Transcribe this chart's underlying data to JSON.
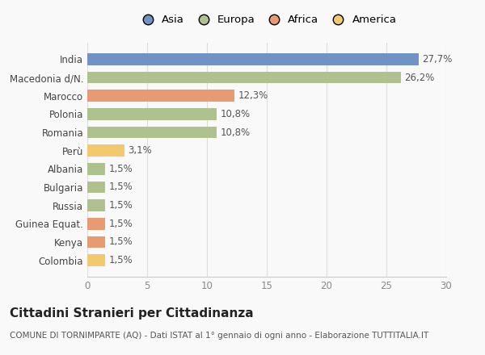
{
  "categories": [
    "Colombia",
    "Kenya",
    "Guinea Equat.",
    "Russia",
    "Bulgaria",
    "Albania",
    "Perù",
    "Romania",
    "Polonia",
    "Marocco",
    "Macedonia d/N.",
    "India"
  ],
  "values": [
    1.5,
    1.5,
    1.5,
    1.5,
    1.5,
    1.5,
    3.1,
    10.8,
    10.8,
    12.3,
    26.2,
    27.7
  ],
  "labels": [
    "1,5%",
    "1,5%",
    "1,5%",
    "1,5%",
    "1,5%",
    "1,5%",
    "3,1%",
    "10,8%",
    "10,8%",
    "12,3%",
    "26,2%",
    "27,7%"
  ],
  "colors": [
    "#f2c96e",
    "#e89b72",
    "#e89b72",
    "#afc28e",
    "#afc28e",
    "#afc28e",
    "#f2c96e",
    "#afc28e",
    "#afc28e",
    "#e89b72",
    "#afc28e",
    "#7192c4"
  ],
  "legend_labels": [
    "Asia",
    "Europa",
    "Africa",
    "America"
  ],
  "legend_colors": [
    "#7192c4",
    "#afc28e",
    "#e89b72",
    "#f2c96e"
  ],
  "title": "Cittadini Stranieri per Cittadinanza",
  "subtitle": "COMUNE DI TORNIMPARTE (AQ) - Dati ISTAT al 1° gennaio di ogni anno - Elaborazione TUTTITALIA.IT",
  "xlim": [
    0,
    30
  ],
  "xticks": [
    0,
    5,
    10,
    15,
    20,
    25,
    30
  ],
  "background_color": "#f9f9f9",
  "bar_height": 0.65,
  "label_fontsize": 8.5,
  "tick_fontsize": 8.5,
  "legend_fontsize": 9.5,
  "title_fontsize": 11,
  "subtitle_fontsize": 7.5
}
